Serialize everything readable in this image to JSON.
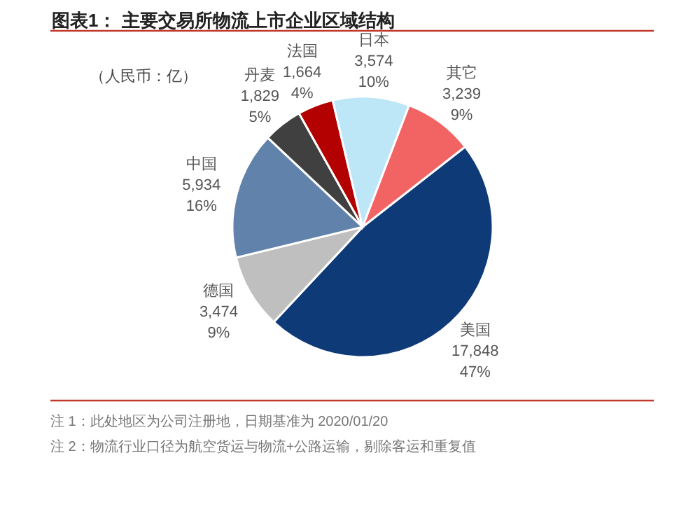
{
  "chart_data": {
    "type": "pie",
    "title": "图表1：  主要交易所物流上市企业区域结构",
    "categories": [
      "美国",
      "德国",
      "中国",
      "丹麦",
      "法国",
      "日本",
      "其它"
    ],
    "values": [
      17848,
      3474,
      5934,
      1829,
      1664,
      3574,
      3239
    ],
    "value_labels": [
      "17,848\n47%",
      "3,474\n9%",
      "5,934\n16%",
      "1,829\n5%",
      "1,664\n4%",
      "3,574\n10%",
      "3,239\n9%"
    ],
    "colors": [
      "#0e3a78",
      "#bfbfbf",
      "#6182ab",
      "#404040",
      "#b30000",
      "#bde6f7",
      "#f26464"
    ],
    "annotations": [
      "（人民币：亿）",
      "注 1：此处地区为公司注册地，日期基准为 2020/01/20",
      "注 2：物流行业口径为航空货运与物流+公路运输，剔除客运和重复值"
    ]
  }
}
